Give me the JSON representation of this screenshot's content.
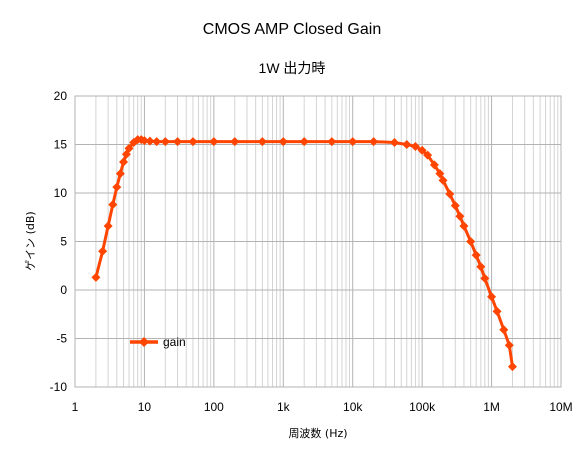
{
  "chart_data": {
    "type": "line",
    "title": "CMOS AMP Closed Gain",
    "subtitle": "1W 出力時",
    "xlabel": "周波数 (Hz)",
    "ylabel": "ゲイン (dB)",
    "x_scale": "log",
    "xlim": [
      1,
      10000000
    ],
    "ylim": [
      -10,
      20
    ],
    "x_tick_labels": [
      "1",
      "10",
      "100",
      "1k",
      "10k",
      "100k",
      "1M",
      "10M"
    ],
    "y_tick_labels": [
      "20",
      "15",
      "10",
      "5",
      "0",
      "-5",
      "-10"
    ],
    "grid": true,
    "legend_position": "left-bottom inside plot",
    "series": [
      {
        "name": "gain",
        "color": "#ff4500",
        "marker": "diamond",
        "x": [
          2,
          2.5,
          3,
          3.5,
          4,
          4.5,
          5,
          5.5,
          6,
          7,
          8,
          9,
          10,
          12,
          15,
          20,
          30,
          50,
          100,
          200,
          500,
          1000,
          2000,
          5000,
          10000,
          20000,
          40000,
          60000,
          80000,
          100000,
          120000,
          150000,
          180000,
          200000,
          250000,
          300000,
          350000,
          400000,
          500000,
          600000,
          700000,
          800000,
          1000000,
          1200000,
          1500000,
          1800000,
          2000000
        ],
        "y": [
          1.3,
          4.0,
          6.6,
          8.8,
          10.6,
          12.0,
          13.2,
          14.0,
          14.6,
          15.2,
          15.5,
          15.5,
          15.4,
          15.35,
          15.3,
          15.3,
          15.3,
          15.3,
          15.3,
          15.3,
          15.3,
          15.3,
          15.3,
          15.3,
          15.3,
          15.3,
          15.2,
          15.0,
          14.8,
          14.4,
          13.9,
          12.9,
          12.0,
          11.3,
          9.9,
          8.7,
          7.6,
          6.6,
          5.0,
          3.6,
          2.4,
          1.2,
          -0.7,
          -2.2,
          -4.1,
          -5.7,
          -7.9
        ]
      }
    ]
  }
}
